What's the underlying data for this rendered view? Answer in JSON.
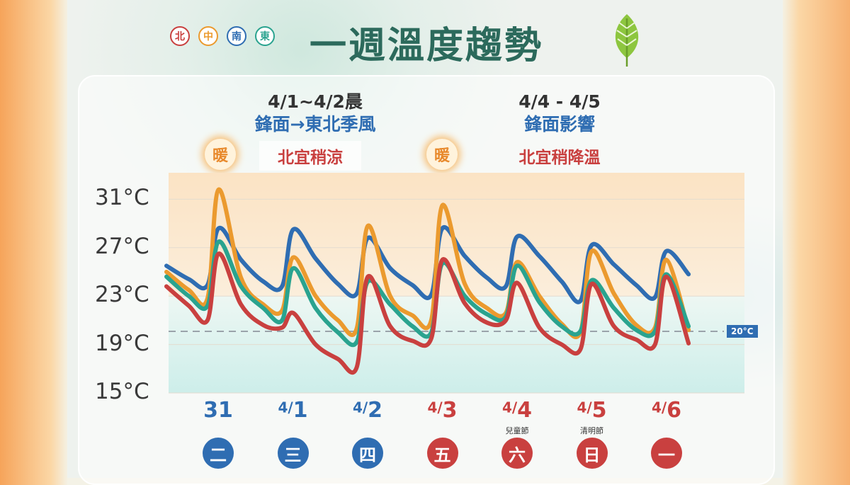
{
  "title": "一週溫度趨勢",
  "regions": [
    {
      "label": "北",
      "color": "#c9403f"
    },
    {
      "label": "中",
      "color": "#eb9a2e"
    },
    {
      "label": "南",
      "color": "#2f6db2"
    },
    {
      "label": "東",
      "color": "#2aa38f"
    }
  ],
  "annotations": {
    "left": {
      "date": "4/1~4/2晨",
      "desc": "鋒面→東北季風",
      "sub": "北宜稍涼"
    },
    "right": {
      "date": "4/4 - 4/5",
      "desc": "鋒面影響",
      "sub": "北宜稍降溫"
    },
    "warm_label": "暖"
  },
  "reference": {
    "label": "20°C",
    "value": 20
  },
  "days": [
    {
      "date_sup": "",
      "date_main": "31",
      "weekday": "二",
      "holiday": "",
      "color": "#2f6db2"
    },
    {
      "date_sup": "4/",
      "date_main": "1",
      "weekday": "三",
      "holiday": "",
      "color": "#2f6db2"
    },
    {
      "date_sup": "4/",
      "date_main": "2",
      "weekday": "四",
      "holiday": "",
      "color": "#2f6db2"
    },
    {
      "date_sup": "4/",
      "date_main": "3",
      "weekday": "五",
      "holiday": "",
      "color": "#c9403f"
    },
    {
      "date_sup": "4/",
      "date_main": "4",
      "weekday": "六",
      "holiday": "兒童節",
      "color": "#c9403f"
    },
    {
      "date_sup": "4/",
      "date_main": "5",
      "weekday": "日",
      "holiday": "清明節",
      "color": "#c9403f"
    },
    {
      "date_sup": "4/",
      "date_main": "6",
      "weekday": "一",
      "holiday": "",
      "color": "#c9403f"
    }
  ],
  "chart_data": {
    "type": "line",
    "ylim": [
      15,
      33
    ],
    "yticks": [
      "31°C",
      "27°C",
      "23°C",
      "19°C",
      "15°C"
    ],
    "ytick_values": [
      31,
      27,
      23,
      19,
      15
    ],
    "x": [
      0,
      0.3,
      0.55,
      0.7,
      1.0,
      1.3,
      1.55,
      1.7,
      2.0,
      2.3,
      2.55,
      2.7,
      3.0,
      3.3,
      3.55,
      3.7,
      4.0,
      4.3,
      4.55,
      4.7,
      5.0,
      5.3,
      5.55,
      5.7,
      6.0,
      6.3,
      6.55,
      6.7,
      7.0
    ],
    "series": [
      {
        "key": "south",
        "color": "#2f6db2",
        "values": [
          25.5,
          24.4,
          23.9,
          28.6,
          26.0,
          24.2,
          23.8,
          28.5,
          26.1,
          24.0,
          23.2,
          27.8,
          25.3,
          23.9,
          23.1,
          28.6,
          26.3,
          24.5,
          23.8,
          27.9,
          26.3,
          24.2,
          22.6,
          27.2,
          25.6,
          23.9,
          22.9,
          26.7,
          24.8
        ]
      },
      {
        "key": "central",
        "color": "#eb9a2e",
        "values": [
          25.0,
          23.5,
          22.8,
          31.8,
          24.5,
          22.3,
          21.8,
          26.2,
          23.0,
          21.0,
          20.3,
          28.8,
          23.0,
          21.4,
          21.0,
          30.5,
          24.0,
          22.0,
          21.6,
          25.8,
          23.0,
          20.7,
          20.0,
          26.7,
          23.2,
          20.6,
          20.4,
          26.0,
          20.2
        ]
      },
      {
        "key": "east",
        "color": "#2aa38f",
        "values": [
          24.6,
          23.0,
          22.2,
          27.5,
          23.8,
          22.0,
          21.0,
          25.3,
          22.0,
          20.0,
          19.2,
          24.2,
          22.3,
          20.5,
          20.0,
          25.7,
          23.0,
          21.5,
          21.3,
          25.5,
          22.5,
          20.5,
          20.1,
          24.3,
          22.0,
          20.2,
          20.1,
          24.8,
          20.5
        ]
      },
      {
        "key": "north",
        "color": "#c9403f",
        "values": [
          23.8,
          22.2,
          21.0,
          26.5,
          22.3,
          20.6,
          20.4,
          21.6,
          19.0,
          17.8,
          17.1,
          24.6,
          20.5,
          19.3,
          19.5,
          26.0,
          22.4,
          20.8,
          21.0,
          24.1,
          20.4,
          19.0,
          18.6,
          24.0,
          20.5,
          19.4,
          19.0,
          24.6,
          19.1
        ]
      }
    ]
  }
}
